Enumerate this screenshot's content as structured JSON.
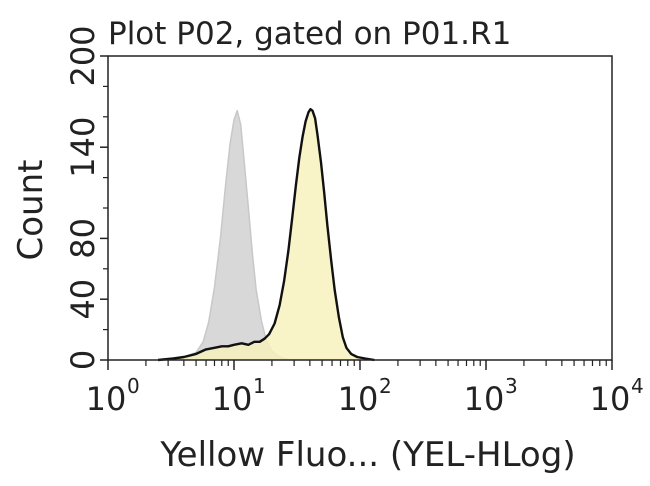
{
  "chart_data": {
    "type": "area",
    "title": "Plot P02, gated on P01.R1",
    "xlabel": "Yellow Fluo... (YEL-HLog)",
    "ylabel": "Count",
    "x_scale": "log10",
    "xlim": [
      1,
      10000
    ],
    "ylim": [
      0,
      200
    ],
    "x_ticks": [
      {
        "base": "10",
        "exp": "0",
        "value": 1
      },
      {
        "base": "10",
        "exp": "1",
        "value": 10
      },
      {
        "base": "10",
        "exp": "2",
        "value": 100
      },
      {
        "base": "10",
        "exp": "3",
        "value": 1000
      },
      {
        "base": "10",
        "exp": "4",
        "value": 10000
      }
    ],
    "y_ticks": [
      "0",
      "40",
      "80",
      "140",
      "200"
    ],
    "y_tick_values": [
      0,
      40,
      80,
      140,
      200
    ],
    "y_minor_ticks": [
      20,
      60,
      100,
      120,
      160,
      180
    ],
    "grid": false,
    "series": [
      {
        "role": "control",
        "fill_color": "#d8d8d8",
        "stroke_color": "#c8c8c8",
        "points": [
          [
            3.0,
            0
          ],
          [
            4.0,
            2
          ],
          [
            5.0,
            5
          ],
          [
            5.7,
            12
          ],
          [
            6.3,
            25
          ],
          [
            7.0,
            48
          ],
          [
            7.8,
            80
          ],
          [
            8.5,
            112
          ],
          [
            9.3,
            142
          ],
          [
            10.0,
            158
          ],
          [
            10.6,
            164
          ],
          [
            11.3,
            155
          ],
          [
            12.0,
            132
          ],
          [
            13.0,
            100
          ],
          [
            14.0,
            70
          ],
          [
            15.0,
            46
          ],
          [
            16.5,
            26
          ],
          [
            18.0,
            13
          ],
          [
            20.0,
            6
          ],
          [
            22.0,
            3
          ],
          [
            25.0,
            1
          ],
          [
            28.0,
            0
          ]
        ]
      },
      {
        "role": "sample",
        "fill_color": "#f7f1bc",
        "stroke_color": "#111111",
        "points": [
          [
            2.5,
            0
          ],
          [
            3.3,
            1
          ],
          [
            4.0,
            2
          ],
          [
            5.0,
            4
          ],
          [
            6.0,
            7
          ],
          [
            7.0,
            8
          ],
          [
            8.0,
            9
          ],
          [
            9.0,
            9
          ],
          [
            10.0,
            10
          ],
          [
            11.5,
            11
          ],
          [
            13.0,
            10
          ],
          [
            14.5,
            12
          ],
          [
            16.0,
            12
          ],
          [
            17.5,
            14
          ],
          [
            19.0,
            17
          ],
          [
            21.0,
            24
          ],
          [
            23.0,
            36
          ],
          [
            25.0,
            52
          ],
          [
            27.0,
            72
          ],
          [
            29.0,
            94
          ],
          [
            31.0,
            115
          ],
          [
            33.0,
            133
          ],
          [
            35.0,
            147
          ],
          [
            37.0,
            157
          ],
          [
            39.0,
            163
          ],
          [
            40.5,
            165
          ],
          [
            42.0,
            164
          ],
          [
            44.0,
            159
          ],
          [
            46.0,
            148
          ],
          [
            49.0,
            130
          ],
          [
            52.0,
            110
          ],
          [
            55.0,
            89
          ],
          [
            59.0,
            66
          ],
          [
            63.0,
            46
          ],
          [
            68.0,
            28
          ],
          [
            73.0,
            15
          ],
          [
            78.0,
            8
          ],
          [
            85.0,
            4
          ],
          [
            95.0,
            2
          ],
          [
            110.0,
            1
          ],
          [
            130.0,
            0
          ]
        ]
      }
    ]
  }
}
